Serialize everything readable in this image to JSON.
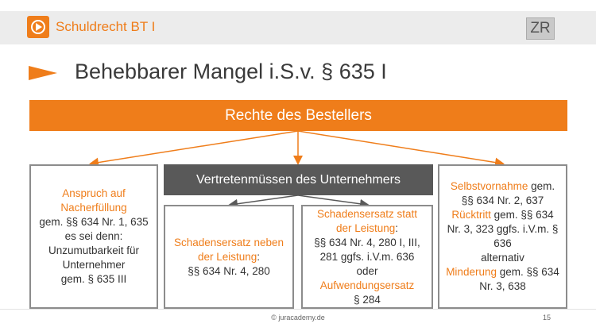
{
  "header": {
    "course": "Schuldrecht BT I",
    "badge": "ZR",
    "icon": "play-icon",
    "accent": "#ef7d1a"
  },
  "title": "Behebbarer Mangel i.S.v. § 635 I",
  "banner": "Rechte des Bestellers",
  "left_box": {
    "line1": "Anspruch auf",
    "line2": "Nacherfüllung",
    "line3": "gem. §§ 634 Nr. 1, 635",
    "line4": "es sei denn:",
    "line5": "Unzumutbarkeit für",
    "line6": "Unternehmer",
    "line7": "gem. § 635 III"
  },
  "middle_header": "Vertretenmüssen des Unternehmers",
  "mid_left_box": {
    "line1": "Schadensersatz neben",
    "line2a": "der Leistung",
    "line2b": ":",
    "line3": "§§ 634 Nr. 4, 280"
  },
  "mid_right_box": {
    "line1": "Schadensersatz statt",
    "line2a": "der Leistung",
    "line2b": ":",
    "line3": "§§ 634 Nr. 4, 280 I, III,",
    "line4": "281 ggfs. i.V.m. 636",
    "line5": "oder",
    "line6": "Aufwendungsersatz",
    "line7": "§ 284"
  },
  "right_box": {
    "line1a": "Selbstvornahme",
    "line1b": " gem.",
    "line2": "§§ 634 Nr. 2, 637",
    "line3a": "Rücktritt",
    "line3b": " gem. §§ 634",
    "line4": "Nr. 3, 323 ggfs. i.V.m. §",
    "line5": "636",
    "line6": "alternativ",
    "line7a": "Minderung",
    "line7b": " gem. §§ 634",
    "line8": "Nr. 3, 638"
  },
  "footer": {
    "copyright": "© juracademy.de",
    "page": "15"
  }
}
